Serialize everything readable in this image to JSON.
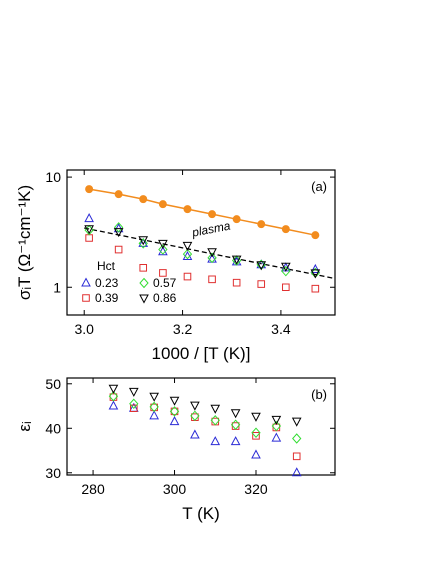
{
  "chart_data": [
    {
      "type": "scatter",
      "xlabel": "1000 / [T (K)]",
      "ylabel": "σᵢT (Ω⁻¹cm⁻¹K)",
      "x": [
        3.01,
        3.07,
        3.12,
        3.16,
        3.21,
        3.26,
        3.31,
        3.36,
        3.41,
        3.47
      ],
      "xlim": [
        2.965,
        3.51
      ],
      "xticks": [
        {
          "value": 3.0,
          "label": "3.0"
        },
        3.2,
        3.4
      ],
      "ylim": [
        0.56,
        11.6
      ],
      "yticks": [
        1,
        10
      ],
      "log_y": true,
      "annotations": [
        "(a)",
        "plasma"
      ],
      "legend_title": "Hct",
      "series": [
        {
          "name": "0.23",
          "color": "#2b2bd6",
          "marker": "triangle-up",
          "values": [
            4.2,
            3.4,
            2.5,
            2.1,
            1.9,
            1.8,
            1.7,
            1.6,
            1.5,
            1.45
          ]
        },
        {
          "name": "0.39",
          "color": "#e03030",
          "marker": "square",
          "values": [
            2.8,
            2.2,
            1.5,
            1.35,
            1.25,
            1.18,
            1.1,
            1.07,
            1.0,
            0.97
          ]
        },
        {
          "name": "0.57",
          "color": "#33dd33",
          "marker": "diamond",
          "values": [
            3.3,
            3.5,
            2.5,
            2.2,
            2.0,
            1.85,
            1.75,
            1.6,
            1.4,
            1.35
          ]
        },
        {
          "name": "0.86",
          "color": "#000000",
          "marker": "triangle-down",
          "values": [
            3.4,
            3.2,
            2.7,
            2.5,
            2.4,
            2.1,
            1.8,
            1.6,
            1.55,
            1.35
          ]
        }
      ],
      "plasma": {
        "color": "#f28c1e",
        "values": [
          7.78,
          7.0,
          6.31,
          5.68,
          5.12,
          4.61,
          4.15,
          3.74,
          3.37,
          2.97
        ]
      },
      "fit_line": {
        "color": "#000000",
        "x": [
          3.0,
          3.51
        ],
        "values": [
          3.45,
          1.2
        ]
      }
    },
    {
      "type": "scatter",
      "xlabel": "T (K)",
      "ylabel": "εᵢ",
      "x": [
        285,
        290,
        295,
        300,
        305,
        310,
        315,
        320,
        325,
        330
      ],
      "xlim": [
        273.6,
        339.4
      ],
      "xticks": [
        280,
        300,
        320
      ],
      "ylim": [
        29.5,
        51.3
      ],
      "yticks": [
        30,
        40,
        50
      ],
      "annotations": [
        "(b)"
      ],
      "series": [
        {
          "name": "0.23",
          "color": "#2b2bd6",
          "marker": "triangle-up",
          "values": [
            45,
            44.5,
            42.8,
            41.5,
            38.5,
            37,
            37,
            34,
            37.8,
            30
          ]
        },
        {
          "name": "0.39",
          "color": "#e03030",
          "marker": "square",
          "values": [
            47,
            44.5,
            44.7,
            43.8,
            42.5,
            41.5,
            40.5,
            38.3,
            40.2,
            33.7
          ]
        },
        {
          "name": "0.57",
          "color": "#33dd33",
          "marker": "diamond",
          "values": [
            47.2,
            45.5,
            44.8,
            43.8,
            42.8,
            41.8,
            40.8,
            39,
            40.5,
            37.7
          ]
        },
        {
          "name": "0.86",
          "color": "#000000",
          "marker": "triangle-down",
          "values": [
            49,
            48.3,
            47.2,
            46.3,
            45.2,
            44.5,
            43.5,
            42.7,
            42,
            41.6
          ]
        }
      ]
    }
  ]
}
